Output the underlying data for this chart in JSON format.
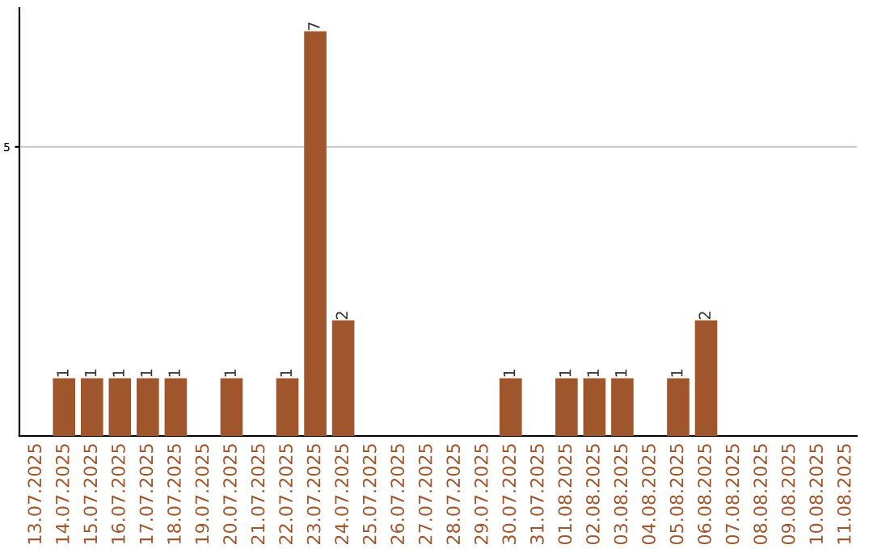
{
  "chart_data": {
    "type": "bar",
    "categories": [
      "13.07.2025",
      "14.07.2025",
      "15.07.2025",
      "16.07.2025",
      "17.07.2025",
      "18.07.2025",
      "19.07.2025",
      "20.07.2025",
      "21.07.2025",
      "22.07.2025",
      "23.07.2025",
      "24.07.2025",
      "25.07.2025",
      "26.07.2025",
      "27.07.2025",
      "28.07.2025",
      "29.07.2025",
      "30.07.2025",
      "31.07.2025",
      "01.08.2025",
      "02.08.2025",
      "03.08.2025",
      "04.08.2025",
      "05.08.2025",
      "06.08.2025",
      "07.08.2025",
      "08.08.2025",
      "09.08.2025",
      "10.08.2025",
      "11.08.2025"
    ],
    "values": [
      0,
      1,
      1,
      1,
      1,
      1,
      0,
      1,
      0,
      1,
      7,
      2,
      0,
      0,
      0,
      0,
      0,
      1,
      0,
      1,
      1,
      1,
      0,
      1,
      2,
      0,
      0,
      0,
      0,
      0
    ],
    "value_labels": [
      null,
      "1",
      "1",
      "1",
      "1",
      "1",
      null,
      "1",
      null,
      "1",
      "7",
      "2",
      null,
      null,
      null,
      null,
      null,
      "1",
      null,
      "1",
      "1",
      "1",
      null,
      "1",
      "2",
      null,
      null,
      null,
      null,
      null
    ],
    "color": "#a0562c",
    "ylim": [
      0,
      7.4
    ],
    "yticks": [
      5
    ],
    "grid": "y"
  }
}
